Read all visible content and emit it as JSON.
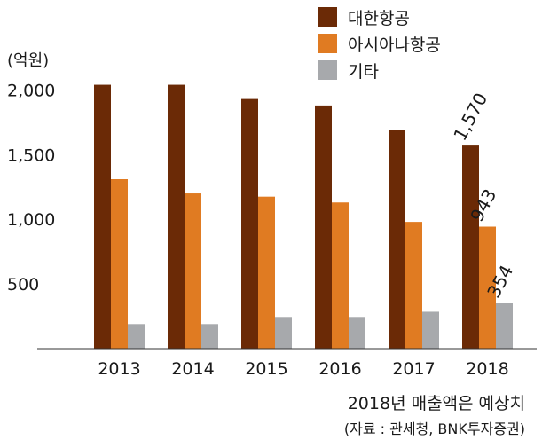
{
  "chart_data": {
    "type": "bar",
    "unit_label": "(억원)",
    "categories": [
      "2013",
      "2014",
      "2015",
      "2016",
      "2017",
      "2018"
    ],
    "series": [
      {
        "name": "대한항공",
        "color": "#6b2a06",
        "values": [
          2040,
          2040,
          1930,
          1880,
          1690,
          1570
        ]
      },
      {
        "name": "아시아나항공",
        "color": "#e07b22",
        "values": [
          1310,
          1200,
          1175,
          1130,
          980,
          943
        ]
      },
      {
        "name": "기타",
        "color": "#a7a9ac",
        "values": [
          190,
          190,
          245,
          245,
          285,
          354
        ]
      }
    ],
    "yticks": [
      {
        "value": 500,
        "label": "500"
      },
      {
        "value": 1000,
        "label": "1,000"
      },
      {
        "value": 1500,
        "label": "1,500"
      },
      {
        "value": 2000,
        "label": "2,000"
      }
    ],
    "ylim": [
      0,
      2200
    ],
    "data_labels": [
      {
        "series": 0,
        "category": 5,
        "text": "1,570"
      },
      {
        "series": 1,
        "category": 5,
        "text": "943"
      },
      {
        "series": 2,
        "category": 5,
        "text": "354"
      }
    ],
    "legend_position": "top-right",
    "grid": false
  },
  "notes": {
    "main": "2018년 매출액은 예상치",
    "source": "(자료 : 관세청, BNK투자증권)"
  }
}
